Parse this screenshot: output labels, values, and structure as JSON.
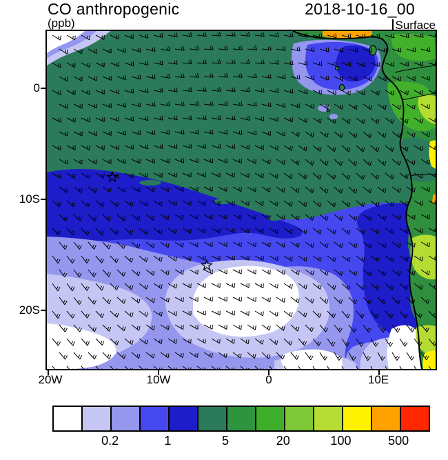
{
  "header": {
    "title": "CO anthropogenic",
    "units": "(ppb)",
    "date": "2018-10-16_00",
    "level": "Surface"
  },
  "axes": {
    "y_ticks": [
      "0",
      "10S",
      "20S"
    ],
    "x_ticks": [
      "20W",
      "10W",
      "0",
      "10E"
    ]
  },
  "colorbar": {
    "colors": [
      "#ffffff",
      "#c6c6f4",
      "#9596ee",
      "#4648ef",
      "#1d1dc9",
      "#2b7a5b",
      "#2e9440",
      "#3fae2a",
      "#7cc837",
      "#b4dc32",
      "#fff200",
      "#ffa200",
      "#ff2600"
    ],
    "labels": [
      "0.2",
      "1",
      "5",
      "20",
      "100",
      "500"
    ]
  },
  "chart_data": {
    "type": "heatmap",
    "title": "CO anthropogenic",
    "units": "ppb",
    "datetime_label": "2018-10-16_00",
    "level_label": "Surface",
    "x_axis": {
      "ticks": [
        "20W",
        "10W",
        "0",
        "10E"
      ],
      "range_deg_lon": [
        -20.4,
        15.1
      ]
    },
    "y_axis": {
      "ticks": [
        "0",
        "10S",
        "20S"
      ],
      "range_deg_lat": [
        5.2,
        -25.3
      ]
    },
    "contour_boundaries": [
      0.1,
      0.2,
      0.5,
      1,
      2,
      5,
      10,
      20,
      50,
      100,
      200,
      500
    ],
    "labeled_boundaries": [
      "0.2",
      "1",
      "5",
      "20",
      "100",
      "500"
    ],
    "palette": [
      "#ffffff",
      "#c6c6f4",
      "#9596ee",
      "#4648ef",
      "#1d1dc9",
      "#2b7a5b",
      "#2e9440",
      "#3fae2a",
      "#7cc837",
      "#b4dc32",
      "#fff200",
      "#ffa200",
      "#ff2600"
    ],
    "overlays": [
      "wind-barbs",
      "african-coastline",
      "star-markers"
    ],
    "star_markers_lonlat": [
      [
        -14.3,
        -8.0
      ],
      [
        -5.7,
        -16.0
      ]
    ],
    "field_summary": [
      {
        "region": "northern and eastern open ocean",
        "value_ppb": "5-20",
        "color": "dark sea green"
      },
      {
        "region": "west-central band near 8S-12S",
        "value_ppb": "2-5",
        "color": "dark blue"
      },
      {
        "region": "central South Atlantic 14S-22S",
        "value_ppb": "0.5-2",
        "color": "blue to periwinkle"
      },
      {
        "region": "south-central minimum and SW corner",
        "value_ppb": "< 0.2-0.5",
        "color": "white to lavender"
      },
      {
        "region": "African land areas along east edge",
        "value_ppb": "20-500+",
        "color": "greens, yellow, orange"
      }
    ]
  }
}
